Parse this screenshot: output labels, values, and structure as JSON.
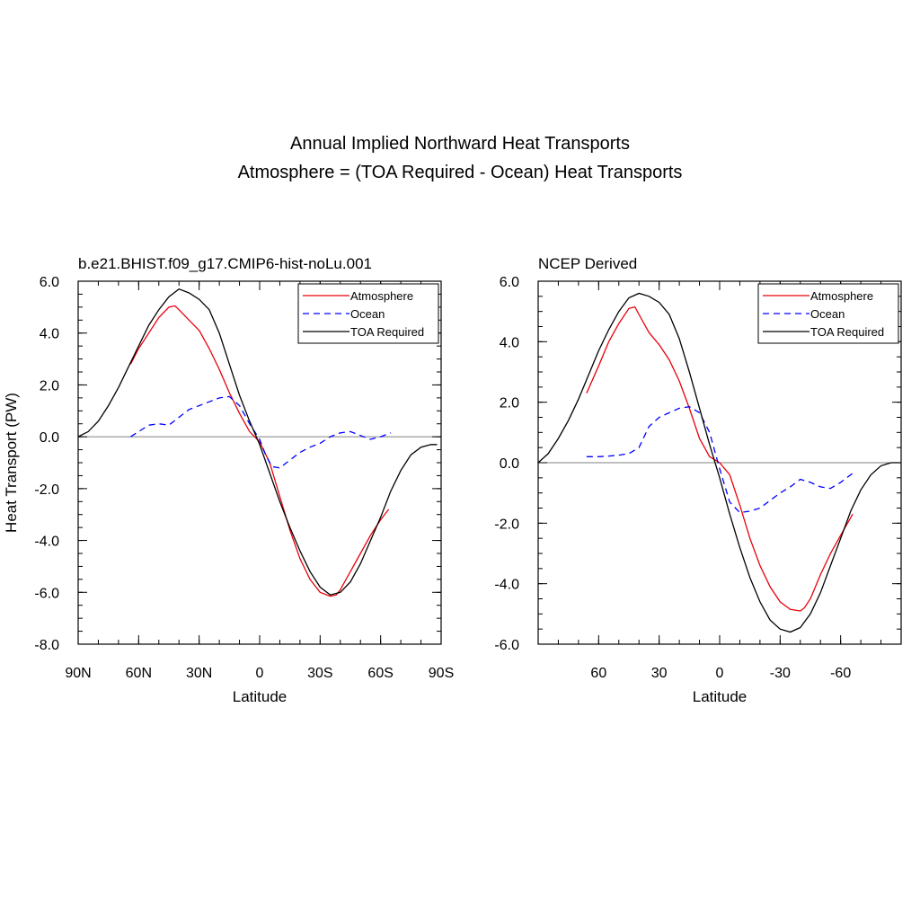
{
  "figure": {
    "title": "Annual Implied Northward Heat Transports",
    "subtitle": "Atmosphere = (TOA Required - Ocean) Heat Transports"
  },
  "colors": {
    "atmosphere": "#e8000b",
    "ocean": "#0000ff",
    "toa": "#000000",
    "zero_line": "#808080"
  },
  "chart_data": [
    {
      "type": "line",
      "title": "b.e21.BHIST.f09_g17.CMIP6-hist-noLu.001",
      "xlabel": "Latitude",
      "ylabel": "Heat Transport (PW)",
      "xlim": [
        90,
        -90
      ],
      "ylim": [
        -8,
        6
      ],
      "xticks": [
        90,
        60,
        30,
        0,
        -30,
        -60,
        -90
      ],
      "xtick_labels": [
        "90N",
        "60N",
        "30N",
        "0",
        "30S",
        "60S",
        "90S"
      ],
      "yticks": [
        -8,
        -6,
        -4,
        -2,
        0,
        2,
        4,
        6
      ],
      "ytick_labels": [
        "-8.0",
        "-6.0",
        "-4.0",
        "-2.0",
        "0.0",
        "2.0",
        "4.0",
        "6.0"
      ],
      "legend_position": "top-right",
      "series": [
        {
          "name": "Atmosphere",
          "key": "atmosphere",
          "style": "solid",
          "x": [
            64,
            60,
            55,
            50,
            45,
            42,
            40,
            35,
            30,
            25,
            20,
            15,
            10,
            5,
            0,
            -5,
            -10,
            -15,
            -20,
            -25,
            -30,
            -35,
            -38,
            -40,
            -45,
            -50,
            -55,
            -60,
            -64
          ],
          "y": [
            2.8,
            3.4,
            4.0,
            4.6,
            5.0,
            5.05,
            4.9,
            4.5,
            4.1,
            3.4,
            2.6,
            1.7,
            0.9,
            0.2,
            -0.2,
            -1.0,
            -2.3,
            -3.6,
            -4.7,
            -5.5,
            -6.0,
            -6.15,
            -6.1,
            -5.9,
            -5.2,
            -4.5,
            -3.8,
            -3.2,
            -2.8
          ]
        },
        {
          "name": "Ocean",
          "key": "ocean",
          "style": "dashed",
          "x": [
            64,
            60,
            55,
            50,
            45,
            40,
            35,
            30,
            25,
            20,
            15,
            10,
            5,
            0,
            -3,
            -6,
            -10,
            -15,
            -20,
            -25,
            -30,
            -35,
            -40,
            -45,
            -50,
            -55,
            -60,
            -65
          ],
          "y": [
            0.0,
            0.2,
            0.45,
            0.5,
            0.45,
            0.75,
            1.05,
            1.2,
            1.35,
            1.5,
            1.55,
            1.2,
            0.5,
            -0.1,
            -0.7,
            -1.15,
            -1.2,
            -0.9,
            -0.6,
            -0.4,
            -0.25,
            0.0,
            0.15,
            0.2,
            0.05,
            -0.1,
            0.0,
            0.15
          ]
        },
        {
          "name": "TOA Required",
          "key": "toa",
          "style": "solid",
          "x": [
            90,
            85,
            80,
            75,
            70,
            65,
            60,
            55,
            50,
            45,
            40,
            35,
            30,
            25,
            20,
            15,
            10,
            5,
            0,
            -5,
            -10,
            -15,
            -20,
            -25,
            -30,
            -35,
            -40,
            -45,
            -50,
            -55,
            -60,
            -65,
            -70,
            -75,
            -80,
            -85,
            -88
          ],
          "y": [
            0.0,
            0.2,
            0.6,
            1.2,
            1.9,
            2.7,
            3.5,
            4.3,
            4.9,
            5.4,
            5.7,
            5.55,
            5.3,
            4.9,
            4.0,
            2.8,
            1.6,
            0.6,
            -0.3,
            -1.4,
            -2.5,
            -3.5,
            -4.4,
            -5.2,
            -5.8,
            -6.1,
            -6.0,
            -5.6,
            -4.9,
            -4.0,
            -3.1,
            -2.1,
            -1.3,
            -0.7,
            -0.4,
            -0.3,
            -0.3
          ]
        }
      ]
    },
    {
      "type": "line",
      "title": "NCEP Derived",
      "xlabel": "Latitude",
      "ylabel": "",
      "xlim": [
        90,
        -90
      ],
      "ylim": [
        -6,
        6
      ],
      "xticks": [
        60,
        30,
        0,
        -30,
        -60
      ],
      "xtick_labels": [
        "60",
        "30",
        "0",
        "-30",
        "-60"
      ],
      "yticks": [
        -6,
        -4,
        -2,
        0,
        2,
        4,
        6
      ],
      "ytick_labels": [
        "-6.0",
        "-4.0",
        "-2.0",
        "0.0",
        "2.0",
        "4.0",
        "6.0"
      ],
      "legend_position": "top-right",
      "series": [
        {
          "name": "Atmosphere",
          "key": "atmosphere",
          "style": "solid",
          "x": [
            66,
            60,
            55,
            50,
            45,
            42,
            40,
            35,
            30,
            25,
            20,
            15,
            10,
            5,
            0,
            -5,
            -10,
            -15,
            -20,
            -25,
            -30,
            -35,
            -40,
            -42,
            -45,
            -50,
            -55,
            -60,
            -66
          ],
          "y": [
            2.3,
            3.2,
            4.0,
            4.6,
            5.1,
            5.15,
            4.9,
            4.3,
            3.9,
            3.4,
            2.7,
            1.8,
            0.8,
            0.2,
            0.0,
            -0.4,
            -1.4,
            -2.5,
            -3.4,
            -4.1,
            -4.6,
            -4.85,
            -4.9,
            -4.8,
            -4.5,
            -3.7,
            -3.0,
            -2.4,
            -1.7
          ]
        },
        {
          "name": "Ocean",
          "key": "ocean",
          "style": "dashed",
          "x": [
            66,
            60,
            55,
            50,
            45,
            40,
            35,
            30,
            25,
            20,
            15,
            10,
            5,
            0,
            -5,
            -10,
            -15,
            -20,
            -25,
            -30,
            -35,
            -40,
            -45,
            -50,
            -55,
            -60,
            -66
          ],
          "y": [
            0.2,
            0.2,
            0.22,
            0.25,
            0.3,
            0.5,
            1.2,
            1.5,
            1.65,
            1.8,
            1.85,
            1.65,
            1.0,
            -0.2,
            -1.3,
            -1.65,
            -1.6,
            -1.5,
            -1.25,
            -1.0,
            -0.8,
            -0.55,
            -0.65,
            -0.8,
            -0.85,
            -0.65,
            -0.35
          ]
        },
        {
          "name": "TOA Required",
          "key": "toa",
          "style": "solid",
          "x": [
            90,
            85,
            80,
            75,
            70,
            65,
            60,
            55,
            50,
            45,
            40,
            35,
            30,
            25,
            20,
            15,
            10,
            5,
            0,
            -5,
            -10,
            -15,
            -20,
            -25,
            -30,
            -35,
            -40,
            -45,
            -50,
            -55,
            -60,
            -65,
            -70,
            -75,
            -80,
            -85,
            -90
          ],
          "y": [
            0.0,
            0.3,
            0.8,
            1.4,
            2.1,
            2.9,
            3.7,
            4.4,
            5.0,
            5.45,
            5.6,
            5.5,
            5.3,
            4.9,
            4.1,
            3.0,
            1.8,
            0.6,
            -0.5,
            -1.7,
            -2.8,
            -3.8,
            -4.6,
            -5.2,
            -5.5,
            -5.6,
            -5.45,
            -5.0,
            -4.3,
            -3.4,
            -2.5,
            -1.6,
            -0.9,
            -0.4,
            -0.1,
            0.0,
            0.0
          ]
        }
      ]
    }
  ]
}
